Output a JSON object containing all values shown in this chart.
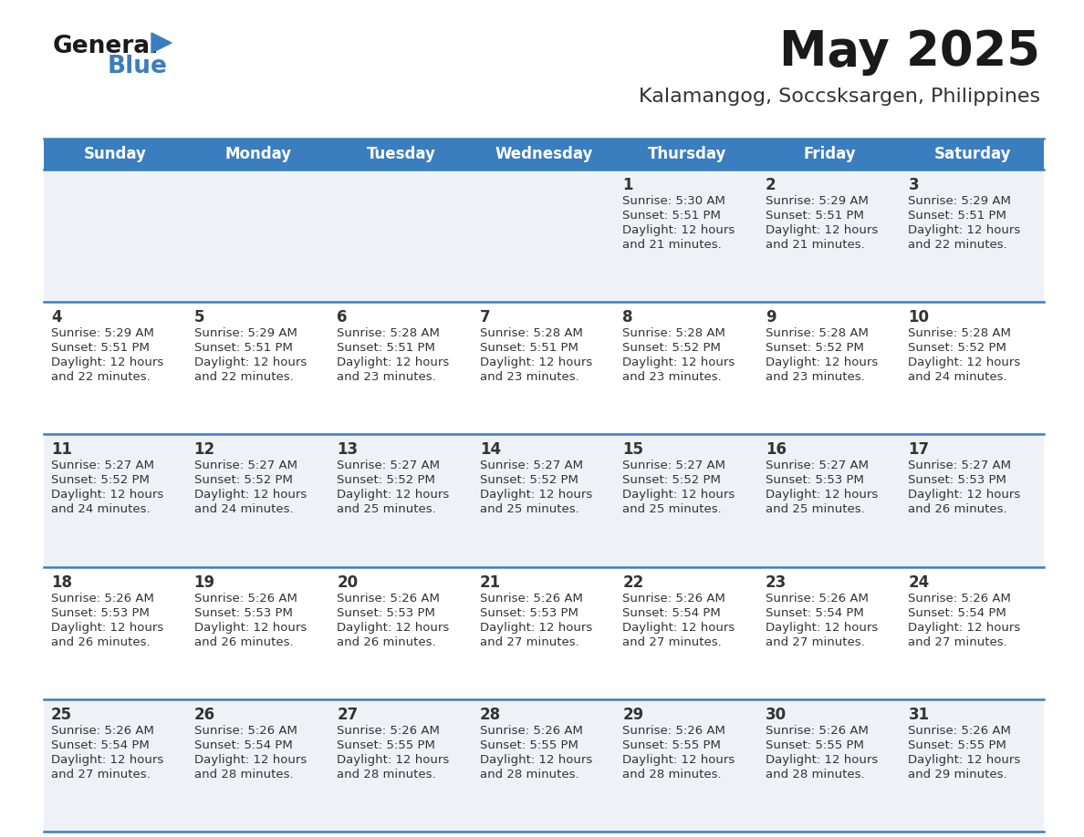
{
  "title": "May 2025",
  "subtitle": "Kalamangog, Soccsksargen, Philippines",
  "days_of_week": [
    "Sunday",
    "Monday",
    "Tuesday",
    "Wednesday",
    "Thursday",
    "Friday",
    "Saturday"
  ],
  "header_bg": "#3a7ebf",
  "header_text": "#ffffff",
  "row_bg_odd": "#eef2f7",
  "row_bg_even": "#ffffff",
  "cell_text": "#333333",
  "divider_color": "#3a7ebf",
  "title_color": "#1a1a1a",
  "subtitle_color": "#333333",
  "logo_general_color": "#1a1a1a",
  "logo_blue_color": "#3a7ebf",
  "logo_triangle_color": "#3a7ebf",
  "calendar_data": [
    [
      null,
      null,
      null,
      null,
      {
        "day": 1,
        "sunrise": "5:30 AM",
        "sunset": "5:51 PM",
        "daylight": "12 hours and 21 minutes."
      },
      {
        "day": 2,
        "sunrise": "5:29 AM",
        "sunset": "5:51 PM",
        "daylight": "12 hours and 21 minutes."
      },
      {
        "day": 3,
        "sunrise": "5:29 AM",
        "sunset": "5:51 PM",
        "daylight": "12 hours and 22 minutes."
      }
    ],
    [
      {
        "day": 4,
        "sunrise": "5:29 AM",
        "sunset": "5:51 PM",
        "daylight": "12 hours and 22 minutes."
      },
      {
        "day": 5,
        "sunrise": "5:29 AM",
        "sunset": "5:51 PM",
        "daylight": "12 hours and 22 minutes."
      },
      {
        "day": 6,
        "sunrise": "5:28 AM",
        "sunset": "5:51 PM",
        "daylight": "12 hours and 23 minutes."
      },
      {
        "day": 7,
        "sunrise": "5:28 AM",
        "sunset": "5:51 PM",
        "daylight": "12 hours and 23 minutes."
      },
      {
        "day": 8,
        "sunrise": "5:28 AM",
        "sunset": "5:52 PM",
        "daylight": "12 hours and 23 minutes."
      },
      {
        "day": 9,
        "sunrise": "5:28 AM",
        "sunset": "5:52 PM",
        "daylight": "12 hours and 23 minutes."
      },
      {
        "day": 10,
        "sunrise": "5:28 AM",
        "sunset": "5:52 PM",
        "daylight": "12 hours and 24 minutes."
      }
    ],
    [
      {
        "day": 11,
        "sunrise": "5:27 AM",
        "sunset": "5:52 PM",
        "daylight": "12 hours and 24 minutes."
      },
      {
        "day": 12,
        "sunrise": "5:27 AM",
        "sunset": "5:52 PM",
        "daylight": "12 hours and 24 minutes."
      },
      {
        "day": 13,
        "sunrise": "5:27 AM",
        "sunset": "5:52 PM",
        "daylight": "12 hours and 25 minutes."
      },
      {
        "day": 14,
        "sunrise": "5:27 AM",
        "sunset": "5:52 PM",
        "daylight": "12 hours and 25 minutes."
      },
      {
        "day": 15,
        "sunrise": "5:27 AM",
        "sunset": "5:52 PM",
        "daylight": "12 hours and 25 minutes."
      },
      {
        "day": 16,
        "sunrise": "5:27 AM",
        "sunset": "5:53 PM",
        "daylight": "12 hours and 25 minutes."
      },
      {
        "day": 17,
        "sunrise": "5:27 AM",
        "sunset": "5:53 PM",
        "daylight": "12 hours and 26 minutes."
      }
    ],
    [
      {
        "day": 18,
        "sunrise": "5:26 AM",
        "sunset": "5:53 PM",
        "daylight": "12 hours and 26 minutes."
      },
      {
        "day": 19,
        "sunrise": "5:26 AM",
        "sunset": "5:53 PM",
        "daylight": "12 hours and 26 minutes."
      },
      {
        "day": 20,
        "sunrise": "5:26 AM",
        "sunset": "5:53 PM",
        "daylight": "12 hours and 26 minutes."
      },
      {
        "day": 21,
        "sunrise": "5:26 AM",
        "sunset": "5:53 PM",
        "daylight": "12 hours and 27 minutes."
      },
      {
        "day": 22,
        "sunrise": "5:26 AM",
        "sunset": "5:54 PM",
        "daylight": "12 hours and 27 minutes."
      },
      {
        "day": 23,
        "sunrise": "5:26 AM",
        "sunset": "5:54 PM",
        "daylight": "12 hours and 27 minutes."
      },
      {
        "day": 24,
        "sunrise": "5:26 AM",
        "sunset": "5:54 PM",
        "daylight": "12 hours and 27 minutes."
      }
    ],
    [
      {
        "day": 25,
        "sunrise": "5:26 AM",
        "sunset": "5:54 PM",
        "daylight": "12 hours and 27 minutes."
      },
      {
        "day": 26,
        "sunrise": "5:26 AM",
        "sunset": "5:54 PM",
        "daylight": "12 hours and 28 minutes."
      },
      {
        "day": 27,
        "sunrise": "5:26 AM",
        "sunset": "5:55 PM",
        "daylight": "12 hours and 28 minutes."
      },
      {
        "day": 28,
        "sunrise": "5:26 AM",
        "sunset": "5:55 PM",
        "daylight": "12 hours and 28 minutes."
      },
      {
        "day": 29,
        "sunrise": "5:26 AM",
        "sunset": "5:55 PM",
        "daylight": "12 hours and 28 minutes."
      },
      {
        "day": 30,
        "sunrise": "5:26 AM",
        "sunset": "5:55 PM",
        "daylight": "12 hours and 28 minutes."
      },
      {
        "day": 31,
        "sunrise": "5:26 AM",
        "sunset": "5:55 PM",
        "daylight": "12 hours and 29 minutes."
      }
    ]
  ]
}
